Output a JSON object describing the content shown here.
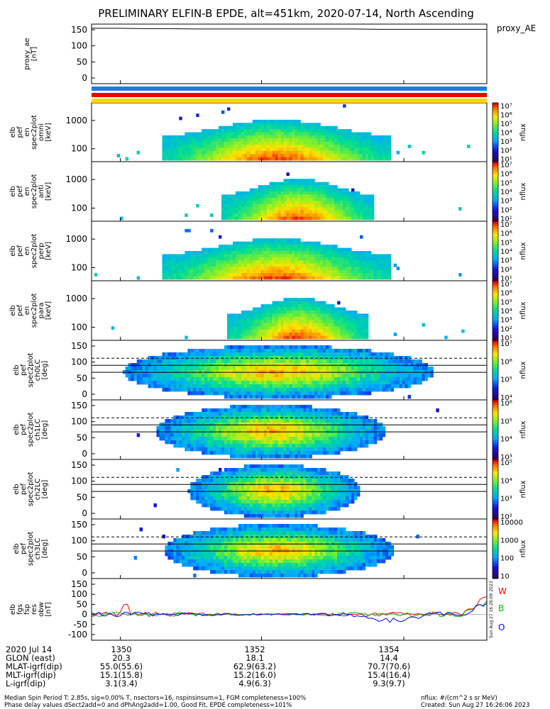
{
  "title": "PRELIMINARY ELFIN-B EPDE, alt=451km, 2020-07-14, North Ascending",
  "created": "Created: Sun Aug 27 16:26:06 2023",
  "side_stamp": "Sun Aug 27 16:26:06 2023",
  "footer": {
    "line1": "Median Spin Period T: 2.85s, sig=0.00% T, nsectors=16, nspinsinsum=1, FGM completeness=100%",
    "line2": "Phase delay values dSect2add=0 and dPhAng2add=1.00, Good Fit, EPDE completeness=101%",
    "nflux_units": "nflux: #/(cm^2 s sr MeV)"
  },
  "colors": {
    "blue_bar": "#1e7be0",
    "red_bar": "#f00000",
    "yellow_bar": "#ffd800",
    "trace_W": "#ff0000",
    "trace_B": "#00c000",
    "trace_O": "#0000ff"
  },
  "chart_data": {
    "type": "heatmap",
    "time_axis": {
      "ticks": [
        "1350",
        "1352",
        "1354"
      ],
      "rows": [
        {
          "label": "2020 Jul 14",
          "values": [
            "1350",
            "1352",
            "1354"
          ]
        },
        {
          "label": "GLON (east)",
          "values": [
            "20.3",
            "18.1",
            "14.4"
          ]
        },
        {
          "label": "MLAT-igrf(dip)",
          "values": [
            "55.0(55.6)",
            "62.9(63.2)",
            "70.7(70.6)"
          ]
        },
        {
          "label": "MLT-igrf(dip)",
          "values": [
            "15.1(15.8)",
            "15.2(16.0)",
            "15.4(16.4)"
          ]
        },
        {
          "label": "L-igrf(dip)",
          "values": [
            "3.1(3.4)",
            "4.9(6.3)",
            "9.3(9.7)"
          ]
        }
      ]
    },
    "panels": [
      {
        "kind": "line",
        "ylabel": [
          "proxy_ae",
          "[nT]"
        ],
        "yticks": [
          "150",
          "100",
          "50",
          "0"
        ],
        "legend": "proxy_AE",
        "series": [
          {
            "values": [
              148,
              148,
              147,
              147,
              146,
              146,
              146,
              146,
              146,
              146,
              146,
              145,
              145,
              145,
              145,
              145
            ]
          }
        ]
      },
      {
        "kind": "spectro",
        "ylabel": [
          "elb",
          "pef",
          "en",
          "spec2plot",
          "omni",
          "[keV]"
        ],
        "yticks": [
          "1000",
          "100"
        ],
        "cbar_ticks": [
          "10⁷",
          "10⁶",
          "10⁵",
          "10⁴",
          "10³",
          "10²",
          "10¹"
        ],
        "cbar_label": "nflux",
        "center": 0.465,
        "width": 0.21,
        "noise": 0.35
      },
      {
        "kind": "spectro",
        "ylabel": [
          "elb",
          "pef",
          "en",
          "spec2plot",
          "anti",
          "[keV]"
        ],
        "yticks": [
          "1000",
          "100"
        ],
        "cbar_ticks": [
          "10⁷",
          "10⁶",
          "10⁵",
          "10⁴",
          "10³",
          "10²",
          "10¹"
        ],
        "cbar_label": "nflux",
        "center": 0.52,
        "width": 0.14,
        "noise": 0.15
      },
      {
        "kind": "spectro",
        "ylabel": [
          "elb",
          "pef",
          "en",
          "spec2plot",
          "perp",
          "[keV]"
        ],
        "yticks": [
          "1000",
          "100"
        ],
        "cbar_ticks": [
          "10⁷",
          "10⁶",
          "10⁵",
          "10⁴",
          "10³",
          "10²",
          "10¹"
        ],
        "cbar_label": "nflux",
        "center": 0.465,
        "width": 0.21,
        "noise": 0.35
      },
      {
        "kind": "spectro",
        "ylabel": [
          "elb",
          "pef",
          "en",
          "spec2plot",
          "para",
          "[keV]"
        ],
        "yticks": [
          "1000",
          "100"
        ],
        "cbar_ticks": [
          "10⁷",
          "10⁶",
          "10⁵",
          "10⁴",
          "10³",
          "10²",
          "10¹"
        ],
        "cbar_label": "nflux",
        "center": 0.52,
        "width": 0.13,
        "noise": 0.18
      },
      {
        "kind": "pa",
        "ylabel": [
          "elb",
          "pef",
          "spec2plot",
          "ch0LC",
          "[deg]"
        ],
        "yticks": [
          "150",
          "100",
          "50",
          "0"
        ],
        "cbar_ticks": [
          "10⁷",
          "10⁶",
          "10⁵",
          "10⁴"
        ],
        "cbar_label": "nflux",
        "center": 0.47,
        "width": 0.27,
        "noise": 0.3
      },
      {
        "kind": "pa",
        "ylabel": [
          "elb",
          "pef",
          "spec2plot",
          "ch1LC",
          "[deg]"
        ],
        "yticks": [
          "150",
          "100",
          "50",
          "0"
        ],
        "cbar_ticks": [
          "10⁶",
          "10⁵",
          "10⁴",
          "10³"
        ],
        "cbar_label": "nflux",
        "center": 0.45,
        "width": 0.2,
        "noise": 0.3
      },
      {
        "kind": "pa",
        "ylabel": [
          "elb",
          "pef",
          "spec2plot",
          "ch2LC",
          "[deg]"
        ],
        "yticks": [
          "150",
          "100",
          "50",
          "0"
        ],
        "cbar_ticks": [
          "10⁵",
          "10⁴",
          "10³",
          "10²"
        ],
        "cbar_label": "nflux",
        "center": 0.46,
        "width": 0.15,
        "noise": 0.3
      },
      {
        "kind": "pa",
        "ylabel": [
          "elb",
          "pef",
          "spec2plot",
          "ch3LC",
          "[deg]"
        ],
        "yticks": [
          "150",
          "100",
          "50",
          "0"
        ],
        "cbar_ticks": [
          "10000",
          "1000",
          "100",
          "10"
        ],
        "cbar_label": "nflux",
        "center": 0.47,
        "width": 0.2,
        "noise": 0.5
      },
      {
        "kind": "res",
        "ylabel": [
          "elb",
          "fgs",
          "fsp",
          "res",
          "obw",
          "[nT]"
        ],
        "yticks": [
          "150",
          "100",
          "50",
          "0",
          "-50",
          "-100"
        ],
        "legend": [
          "W",
          "B",
          "O"
        ]
      }
    ]
  }
}
